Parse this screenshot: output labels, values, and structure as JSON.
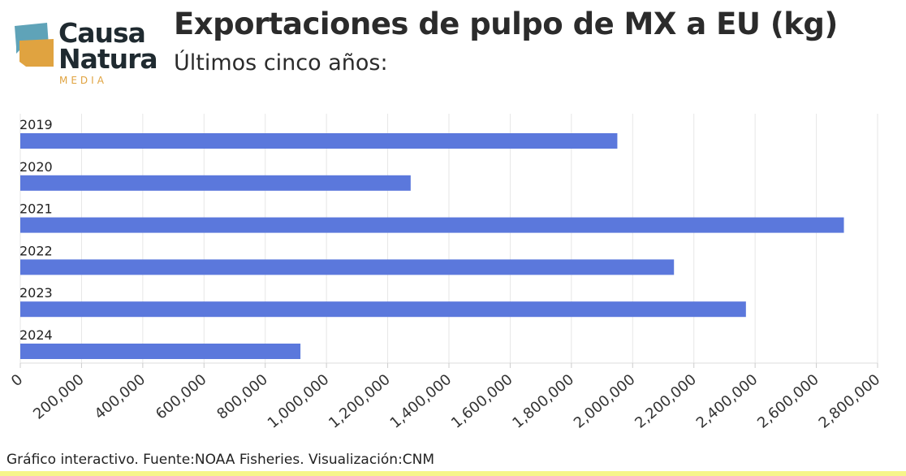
{
  "header": {
    "logo_line1": "Causa",
    "logo_line2": "Natura",
    "logo_line3": "MEDIA",
    "title": "Exportaciones de pulpo de MX a EU (kg)",
    "subtitle": "Últimos cinco años:"
  },
  "footer": {
    "source": "Gráfico interactivo. Fuente:NOAA Fisheries. Visualización:CNM"
  },
  "colors": {
    "bar": "#5b78dc",
    "logo_blue": "#5fa3b8",
    "logo_orange": "#e0a340",
    "grid": "#e6e6e6"
  },
  "chart_data": {
    "type": "bar",
    "orientation": "horizontal",
    "categories": [
      "2019",
      "2020",
      "2021",
      "2022",
      "2023",
      "2024"
    ],
    "values": [
      1950000,
      1275000,
      2690000,
      2135000,
      2370000,
      915000
    ],
    "xlim": [
      0,
      2800000
    ],
    "xticks": [
      "0",
      "200,000",
      "400,000",
      "600,000",
      "800,000",
      "1,000,000",
      "1,200,000",
      "1,400,000",
      "1,600,000",
      "1,800,000",
      "2,000,000",
      "2,200,000",
      "2,400,000",
      "2,600,000",
      "2,800,000"
    ],
    "grid": true
  }
}
